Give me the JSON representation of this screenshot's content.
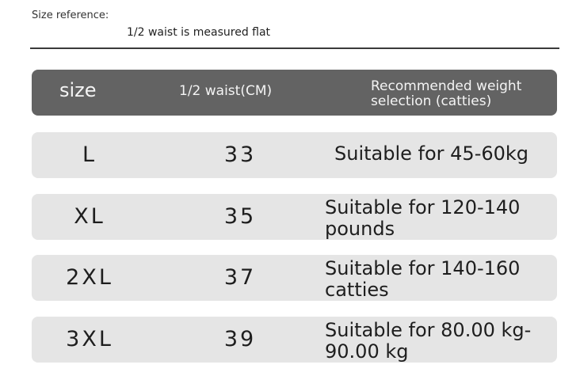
{
  "reference": {
    "label": "Size reference:",
    "note": "1/2 waist is measured flat"
  },
  "table": {
    "headers": {
      "size": "size",
      "waist": "1/2 waist(CM)",
      "weight": "Recommended weight selection (catties)"
    },
    "rows": [
      {
        "size": "L",
        "waist": "33",
        "weight": "Suitable for 45-60kg"
      },
      {
        "size": "XL",
        "waist": "35",
        "weight": "Suitable for 120-140 pounds"
      },
      {
        "size": "2XL",
        "waist": "37",
        "weight": "Suitable for 140-160 catties"
      },
      {
        "size": "3XL",
        "waist": "39",
        "weight": "Suitable for 80.00 kg-90.00 kg"
      }
    ]
  },
  "colors": {
    "header_bg": "#636363",
    "row_bg": "#e5e5e5",
    "divider": "#3a3a3a"
  }
}
